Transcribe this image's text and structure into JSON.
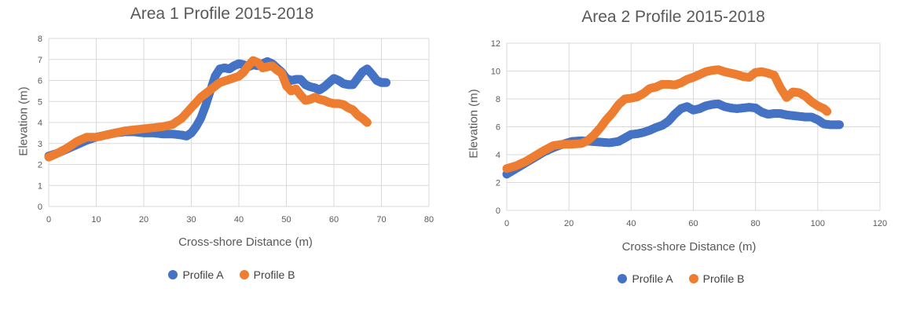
{
  "colors": {
    "profile_a": "#4472C4",
    "profile_b": "#ED7D31",
    "grid": "#d9d9d9",
    "text": "#595959"
  },
  "chart_data": [
    {
      "type": "scatter",
      "title": "Area 1 Profile 2015-2018",
      "xlabel": "Cross-shore Distance (m)",
      "ylabel": "Elevation (m)",
      "xlim": [
        0,
        80
      ],
      "ylim": [
        0,
        8
      ],
      "xticks": [
        "0",
        "10",
        "20",
        "30",
        "40",
        "50",
        "60",
        "70",
        "80"
      ],
      "yticks": [
        "0",
        "1",
        "2",
        "3",
        "4",
        "5",
        "6",
        "7",
        "8"
      ],
      "grid": true,
      "legend": "bottom",
      "series": [
        {
          "name": "Profile A",
          "points": [
            [
              0,
              2.4
            ],
            [
              2,
              2.55
            ],
            [
              4,
              2.75
            ],
            [
              6,
              2.95
            ],
            [
              8,
              3.15
            ],
            [
              10,
              3.3
            ],
            [
              12,
              3.4
            ],
            [
              14,
              3.5
            ],
            [
              16,
              3.55
            ],
            [
              18,
              3.55
            ],
            [
              20,
              3.5
            ],
            [
              22,
              3.5
            ],
            [
              24,
              3.45
            ],
            [
              26,
              3.45
            ],
            [
              28,
              3.4
            ],
            [
              29,
              3.35
            ],
            [
              30,
              3.5
            ],
            [
              31,
              3.8
            ],
            [
              32,
              4.2
            ],
            [
              33,
              4.8
            ],
            [
              34,
              5.5
            ],
            [
              35,
              6.2
            ],
            [
              36,
              6.55
            ],
            [
              37,
              6.6
            ],
            [
              38,
              6.55
            ],
            [
              39,
              6.7
            ],
            [
              40,
              6.8
            ],
            [
              41,
              6.75
            ],
            [
              42,
              6.65
            ],
            [
              43,
              6.75
            ],
            [
              44,
              6.7
            ],
            [
              45,
              6.8
            ],
            [
              46,
              6.9
            ],
            [
              47,
              6.8
            ],
            [
              48,
              6.6
            ],
            [
              49,
              6.4
            ],
            [
              50,
              6.1
            ],
            [
              51,
              6.0
            ],
            [
              52,
              6.05
            ],
            [
              53,
              6.05
            ],
            [
              54,
              5.8
            ],
            [
              55,
              5.7
            ],
            [
              56,
              5.65
            ],
            [
              57,
              5.55
            ],
            [
              58,
              5.7
            ],
            [
              59,
              5.9
            ],
            [
              60,
              6.1
            ],
            [
              61,
              6.0
            ],
            [
              62,
              5.85
            ],
            [
              63,
              5.8
            ],
            [
              64,
              5.8
            ],
            [
              65,
              6.1
            ],
            [
              66,
              6.4
            ],
            [
              67,
              6.55
            ],
            [
              68,
              6.3
            ],
            [
              69,
              6.0
            ],
            [
              70,
              5.9
            ],
            [
              71,
              5.9
            ]
          ]
        },
        {
          "name": "Profile B",
          "points": [
            [
              0,
              2.35
            ],
            [
              2,
              2.55
            ],
            [
              4,
              2.8
            ],
            [
              6,
              3.1
            ],
            [
              8,
              3.3
            ],
            [
              10,
              3.3
            ],
            [
              12,
              3.4
            ],
            [
              14,
              3.5
            ],
            [
              16,
              3.6
            ],
            [
              18,
              3.65
            ],
            [
              20,
              3.7
            ],
            [
              22,
              3.75
            ],
            [
              24,
              3.8
            ],
            [
              26,
              3.9
            ],
            [
              28,
              4.2
            ],
            [
              30,
              4.7
            ],
            [
              32,
              5.2
            ],
            [
              34,
              5.55
            ],
            [
              36,
              5.9
            ],
            [
              38,
              6.05
            ],
            [
              40,
              6.2
            ],
            [
              41,
              6.4
            ],
            [
              42,
              6.7
            ],
            [
              43,
              6.95
            ],
            [
              44,
              6.85
            ],
            [
              45,
              6.6
            ],
            [
              46,
              6.65
            ],
            [
              47,
              6.7
            ],
            [
              48,
              6.5
            ],
            [
              49,
              6.35
            ],
            [
              50,
              5.75
            ],
            [
              51,
              5.5
            ],
            [
              52,
              5.6
            ],
            [
              53,
              5.3
            ],
            [
              54,
              5.05
            ],
            [
              55,
              5.1
            ],
            [
              56,
              5.2
            ],
            [
              57,
              5.1
            ],
            [
              58,
              5.05
            ],
            [
              59,
              4.95
            ],
            [
              60,
              4.9
            ],
            [
              61,
              4.9
            ],
            [
              62,
              4.85
            ],
            [
              63,
              4.7
            ],
            [
              64,
              4.6
            ],
            [
              65,
              4.35
            ],
            [
              66,
              4.2
            ],
            [
              67,
              4.0
            ]
          ]
        }
      ]
    },
    {
      "type": "scatter",
      "title": "Area 2 Profile 2015-2018",
      "xlabel": "Cross-shore Distance (m)",
      "ylabel": "Elevation (m)",
      "xlim": [
        0,
        120
      ],
      "ylim": [
        0,
        12
      ],
      "xticks": [
        "0",
        "20",
        "40",
        "60",
        "80",
        "100",
        "120"
      ],
      "yticks": [
        "0",
        "2",
        "4",
        "6",
        "8",
        "10",
        "12"
      ],
      "grid": true,
      "legend": "bottom",
      "series": [
        {
          "name": "Profile A",
          "points": [
            [
              0,
              2.6
            ],
            [
              3,
              3.0
            ],
            [
              6,
              3.4
            ],
            [
              9,
              3.8
            ],
            [
              12,
              4.2
            ],
            [
              15,
              4.5
            ],
            [
              18,
              4.75
            ],
            [
              21,
              4.95
            ],
            [
              24,
              5.0
            ],
            [
              27,
              4.95
            ],
            [
              30,
              4.9
            ],
            [
              33,
              4.85
            ],
            [
              36,
              4.95
            ],
            [
              38,
              5.2
            ],
            [
              40,
              5.45
            ],
            [
              42,
              5.5
            ],
            [
              44,
              5.6
            ],
            [
              46,
              5.75
            ],
            [
              48,
              5.95
            ],
            [
              50,
              6.1
            ],
            [
              52,
              6.4
            ],
            [
              54,
              6.9
            ],
            [
              56,
              7.3
            ],
            [
              58,
              7.45
            ],
            [
              60,
              7.2
            ],
            [
              62,
              7.3
            ],
            [
              64,
              7.5
            ],
            [
              66,
              7.6
            ],
            [
              68,
              7.65
            ],
            [
              70,
              7.45
            ],
            [
              72,
              7.35
            ],
            [
              74,
              7.3
            ],
            [
              76,
              7.35
            ],
            [
              78,
              7.4
            ],
            [
              80,
              7.35
            ],
            [
              82,
              7.05
            ],
            [
              84,
              6.9
            ],
            [
              86,
              6.95
            ],
            [
              88,
              6.95
            ],
            [
              90,
              6.85
            ],
            [
              92,
              6.8
            ],
            [
              94,
              6.75
            ],
            [
              96,
              6.7
            ],
            [
              98,
              6.7
            ],
            [
              100,
              6.5
            ],
            [
              102,
              6.2
            ],
            [
              104,
              6.15
            ],
            [
              106,
              6.15
            ],
            [
              107,
              6.15
            ]
          ]
        },
        {
          "name": "Profile B",
          "points": [
            [
              0,
              3.0
            ],
            [
              3,
              3.2
            ],
            [
              6,
              3.5
            ],
            [
              9,
              3.9
            ],
            [
              12,
              4.3
            ],
            [
              15,
              4.65
            ],
            [
              18,
              4.75
            ],
            [
              21,
              4.75
            ],
            [
              24,
              4.8
            ],
            [
              26,
              5.0
            ],
            [
              28,
              5.4
            ],
            [
              30,
              5.9
            ],
            [
              32,
              6.5
            ],
            [
              34,
              7.0
            ],
            [
              36,
              7.6
            ],
            [
              38,
              8.0
            ],
            [
              40,
              8.05
            ],
            [
              42,
              8.15
            ],
            [
              44,
              8.4
            ],
            [
              46,
              8.75
            ],
            [
              48,
              8.85
            ],
            [
              50,
              9.05
            ],
            [
              52,
              9.05
            ],
            [
              54,
              9.0
            ],
            [
              56,
              9.15
            ],
            [
              58,
              9.4
            ],
            [
              60,
              9.55
            ],
            [
              62,
              9.75
            ],
            [
              64,
              9.95
            ],
            [
              66,
              10.05
            ],
            [
              68,
              10.1
            ],
            [
              70,
              9.95
            ],
            [
              72,
              9.85
            ],
            [
              74,
              9.75
            ],
            [
              76,
              9.6
            ],
            [
              78,
              9.55
            ],
            [
              80,
              9.9
            ],
            [
              82,
              9.95
            ],
            [
              84,
              9.85
            ],
            [
              86,
              9.7
            ],
            [
              88,
              8.8
            ],
            [
              90,
              8.1
            ],
            [
              92,
              8.5
            ],
            [
              94,
              8.45
            ],
            [
              96,
              8.2
            ],
            [
              98,
              7.8
            ],
            [
              100,
              7.5
            ],
            [
              102,
              7.3
            ],
            [
              103,
              7.1
            ]
          ]
        }
      ]
    }
  ]
}
